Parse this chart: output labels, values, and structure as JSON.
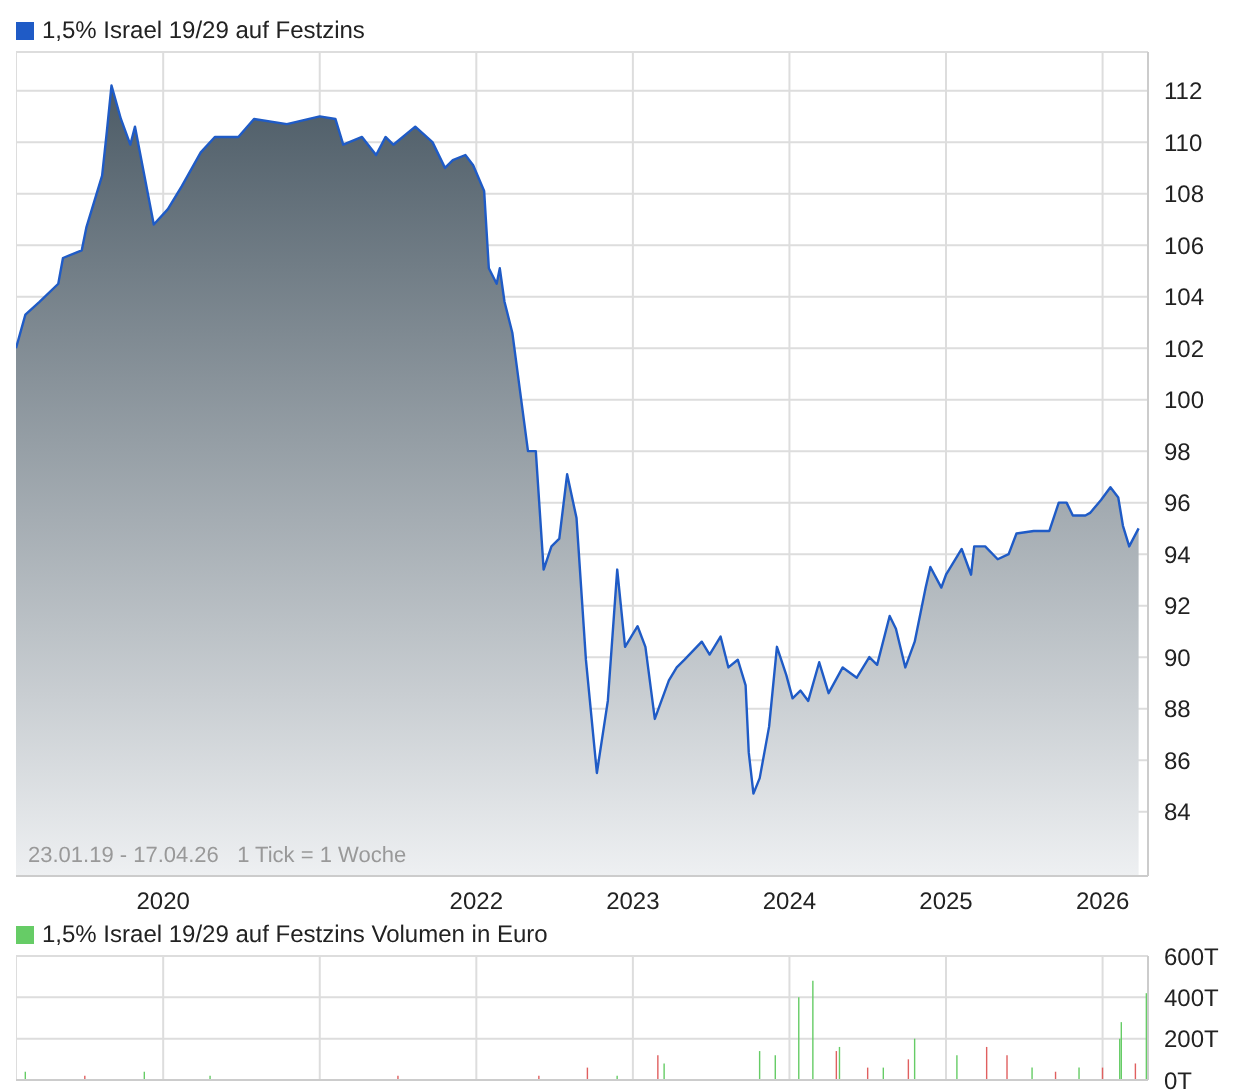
{
  "chart_data": [
    {
      "type": "area",
      "legend": "top left",
      "grid": true,
      "annotations": [
        "23.01.19 - 17.04.26   1 Tick = 1 Woche"
      ],
      "xlim": [
        2019.06,
        2026.29
      ],
      "xticks": [
        2020,
        {
          "value": 2021,
          "label": null
        },
        2022,
        2023,
        2024,
        2025,
        2026
      ],
      "ylim": [
        81.5,
        113.5
      ],
      "yticks": [
        84,
        86,
        88,
        90,
        92,
        94,
        96,
        98,
        100,
        102,
        104,
        106,
        108,
        110,
        112
      ],
      "series": [
        {
          "name": "1,5% Israel 19/29 auf Festzins",
          "color": "#1f5bc6",
          "x": [
            2019.06,
            2019.12,
            2019.21,
            2019.33,
            2019.36,
            2019.48,
            2019.51,
            2019.61,
            2019.64,
            2019.67,
            2019.73,
            2019.79,
            2019.82,
            2019.94,
            2020.03,
            2020.12,
            2020.24,
            2020.33,
            2020.48,
            2020.58,
            2020.79,
            2021.0,
            2021.1,
            2021.15,
            2021.27,
            2021.36,
            2021.42,
            2021.47,
            2021.61,
            2021.72,
            2021.8,
            2021.85,
            2021.93,
            2021.98,
            2022.05,
            2022.08,
            2022.13,
            2022.15,
            2022.18,
            2022.23,
            2022.28,
            2022.33,
            2022.38,
            2022.43,
            2022.48,
            2022.53,
            2022.58,
            2022.64,
            2022.7,
            2022.77,
            2022.84,
            2022.9,
            2022.95,
            2023.03,
            2023.08,
            2023.14,
            2023.23,
            2023.28,
            2023.33,
            2023.44,
            2023.49,
            2023.56,
            2023.61,
            2023.67,
            2023.72,
            2023.74,
            2023.77,
            2023.81,
            2023.87,
            2023.92,
            2023.98,
            2024.02,
            2024.07,
            2024.12,
            2024.19,
            2024.25,
            2024.34,
            2024.43,
            2024.51,
            2024.56,
            2024.64,
            2024.68,
            2024.74,
            2024.8,
            2024.87,
            2024.9,
            2024.97,
            2025.0,
            2025.1,
            2025.16,
            2025.18,
            2025.25,
            2025.33,
            2025.4,
            2025.45,
            2025.56,
            2025.66,
            2025.72,
            2025.77,
            2025.81,
            2025.89,
            2025.92,
            2025.99,
            2026.05,
            2026.1,
            2026.13,
            2026.17,
            2026.23
          ],
          "values": [
            102.0,
            103.3,
            103.8,
            104.5,
            105.5,
            105.8,
            106.7,
            108.7,
            110.4,
            112.2,
            110.9,
            109.9,
            110.6,
            106.8,
            107.4,
            108.3,
            109.6,
            110.2,
            110.2,
            110.9,
            110.7,
            111.0,
            110.9,
            109.9,
            110.2,
            109.5,
            110.2,
            109.9,
            110.6,
            110.0,
            109.0,
            109.3,
            109.5,
            109.1,
            108.1,
            105.1,
            104.5,
            105.1,
            103.8,
            102.6,
            100.3,
            98.0,
            98.0,
            93.4,
            94.3,
            94.6,
            97.1,
            95.4,
            89.9,
            85.5,
            88.3,
            93.4,
            90.4,
            91.2,
            90.4,
            87.6,
            89.1,
            89.6,
            89.9,
            90.6,
            90.1,
            90.8,
            89.6,
            89.9,
            88.9,
            86.3,
            84.7,
            85.3,
            87.3,
            90.4,
            89.3,
            88.4,
            88.7,
            88.3,
            89.8,
            88.6,
            89.6,
            89.2,
            90.0,
            89.7,
            91.6,
            91.1,
            89.6,
            90.6,
            92.7,
            93.5,
            92.7,
            93.2,
            94.2,
            93.2,
            94.3,
            94.3,
            93.8,
            94.0,
            94.8,
            94.9,
            94.9,
            96.0,
            96.0,
            95.5,
            95.5,
            95.6,
            96.1,
            96.6,
            96.2,
            95.1,
            94.3,
            95.0
          ]
        }
      ]
    },
    {
      "type": "bar",
      "legend": "top left",
      "grid": true,
      "tick_labels": "y",
      "xlim": [
        2019.06,
        2026.29
      ],
      "xticks": [
        2020,
        2021,
        2022,
        2023,
        2024,
        2025,
        2026
      ],
      "ylim": [
        0,
        600
      ],
      "yticks": [
        {
          "value": 0,
          "label": "0T"
        },
        {
          "value": 200,
          "label": "200T"
        },
        {
          "value": 400,
          "label": "400T"
        },
        {
          "value": 600,
          "label": "600T"
        }
      ],
      "series": [
        {
          "name": "1,5% Israel 19/29 auf Festzins Volumen in Euro",
          "color": "#66cc66",
          "x": [
            2019.12,
            2019.5,
            2019.88,
            2020.3,
            2021.5,
            2022.4,
            2022.71,
            2022.9,
            2023.16,
            2023.2,
            2023.81,
            2023.91,
            2024.06,
            2024.15,
            2024.3,
            2024.32,
            2024.5,
            2024.6,
            2024.76,
            2024.8,
            2025.07,
            2025.26,
            2025.39,
            2025.55,
            2025.7,
            2025.85,
            2026.0,
            2026.11,
            2026.12,
            2026.21,
            2026.28
          ],
          "values": [
            40,
            20,
            40,
            20,
            20,
            20,
            60,
            20,
            120,
            80,
            140,
            120,
            400,
            480,
            140,
            160,
            60,
            60,
            100,
            200,
            120,
            160,
            120,
            60,
            40,
            60,
            60,
            200,
            280,
            80,
            420
          ],
          "colors": [
            "#66cc66",
            "#e06060",
            "#66cc66",
            "#66cc66",
            "#e06060",
            "#e06060",
            "#e06060",
            "#66cc66",
            "#e06060",
            "#66cc66",
            "#66cc66",
            "#66cc66",
            "#66cc66",
            "#66cc66",
            "#e06060",
            "#66cc66",
            "#e06060",
            "#66cc66",
            "#e06060",
            "#66cc66",
            "#66cc66",
            "#e06060",
            "#e06060",
            "#66cc66",
            "#e06060",
            "#66cc66",
            "#e06060",
            "#66cc66",
            "#66cc66",
            "#e06060",
            "#66cc66"
          ]
        }
      ]
    }
  ]
}
